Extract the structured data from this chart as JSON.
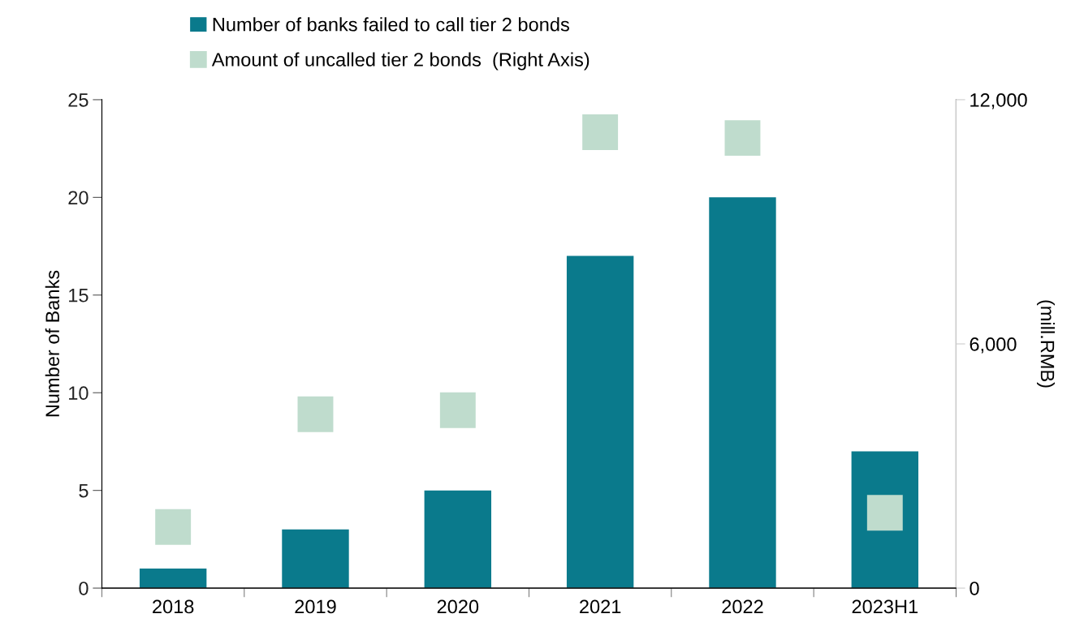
{
  "chart_data": {
    "type": "bar",
    "categories": [
      "2018",
      "2019",
      "2020",
      "2021",
      "2022",
      "2023H1"
    ],
    "series": [
      {
        "name": "Number of banks failed to call tier 2 bonds",
        "color": "#0a7a8c",
        "values": [
          1,
          3,
          5,
          17,
          20,
          7
        ]
      },
      {
        "name": "Amount of uncalled tier 2 bonds  (Right Axis)",
        "type": "scatter",
        "axis": "y2",
        "color": "#bfdccd",
        "values": [
          1500,
          4270,
          4370,
          11200,
          11060,
          1850
        ]
      }
    ],
    "ylabel": "Number of Banks",
    "y2label": "(mill.RMB)",
    "ylim": [
      0,
      25
    ],
    "yticks": [
      0,
      5,
      10,
      15,
      20,
      25
    ],
    "y2lim": [
      0,
      12000
    ],
    "y2ticks": [
      {
        "value": 0,
        "label": "0"
      },
      {
        "value": 6000,
        "label": "6,000"
      },
      {
        "value": 12000,
        "label": "12,000"
      }
    ],
    "marker": "square",
    "legend": "top",
    "grid": false
  }
}
